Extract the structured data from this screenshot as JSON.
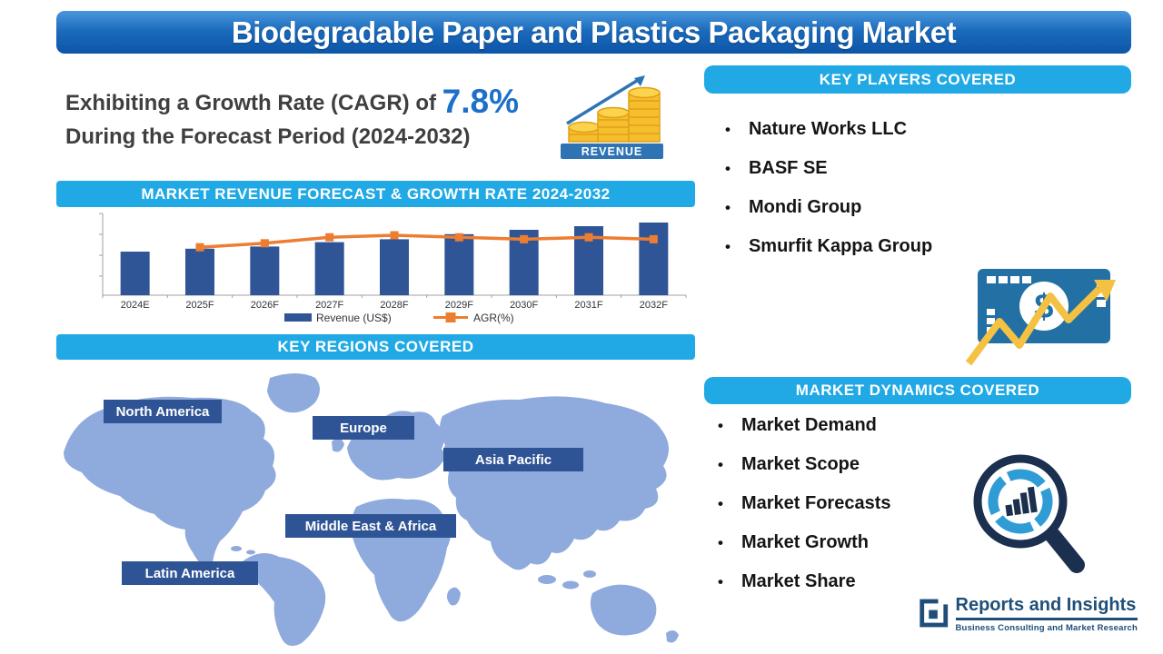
{
  "title": "Biodegradable Paper and Plastics Packaging Market",
  "cagr": {
    "prefix": "Exhibiting a Growth Rate (CAGR) of",
    "value": "7.8%",
    "suffix": "During the Forecast Period (2024-2032)"
  },
  "revenue_icon": {
    "label": "REVENUE"
  },
  "money_icon": {
    "symbol": "$"
  },
  "sections": {
    "chart_banner": "MARKET REVENUE FORECAST & GROWTH RATE 2024-2032",
    "regions_banner": "KEY REGIONS COVERED",
    "players_banner": "KEY PLAYERS COVERED",
    "dynamics_banner": "MARKET DYNAMICS COVERED"
  },
  "key_players": [
    "Nature Works LLC",
    "BASF SE",
    "Mondi Group",
    "Smurfit Kappa Group"
  ],
  "market_dynamics": [
    "Market Demand",
    "Market Scope",
    "Market Forecasts",
    "Market Growth",
    "Market Share"
  ],
  "regions": [
    "North America",
    "Europe",
    "Asia Pacific",
    "Middle East & Africa",
    "Latin America"
  ],
  "logo": {
    "name": "Reports and Insights",
    "tagline": "Business Consulting and Market Research"
  },
  "colors": {
    "title_banner_blue": "#1a6abc",
    "section_banner_cyan": "#20a9e5",
    "bar_blue": "#2f5597",
    "line_orange": "#ed7d31",
    "map_fill": "#8faadc",
    "region_box_navy": "#2f5496",
    "accent_text_blue": "#1d70c9",
    "logo_navy": "#1f4e79"
  },
  "chart_data": {
    "type": "bar",
    "subtype": "bar+line combo",
    "title": "MARKET REVENUE FORECAST & GROWTH RATE 2024-2032",
    "categories": [
      "2024E",
      "2025F",
      "2026F",
      "2027F",
      "2028F",
      "2029F",
      "2030F",
      "2031F",
      "2032F"
    ],
    "series": [
      {
        "name": "Revenue (US$)",
        "type": "bar",
        "color": "#2f5597",
        "values": [
          60,
          64,
          67,
          73,
          77,
          84,
          90,
          95,
          100
        ]
      },
      {
        "name": "AGR(%)",
        "type": "line",
        "color": "#ed7d31",
        "values": [
          null,
          7.4,
          7.6,
          7.9,
          8.0,
          7.9,
          7.8,
          7.9,
          7.8
        ]
      }
    ],
    "values_estimated": true,
    "y_axis": {
      "labels_visible": false,
      "revenue_range": [
        0,
        110
      ],
      "agr_range": [
        5,
        9
      ]
    },
    "xlabel": "",
    "ylabel": "",
    "grid": false,
    "legend_position": "bottom"
  }
}
